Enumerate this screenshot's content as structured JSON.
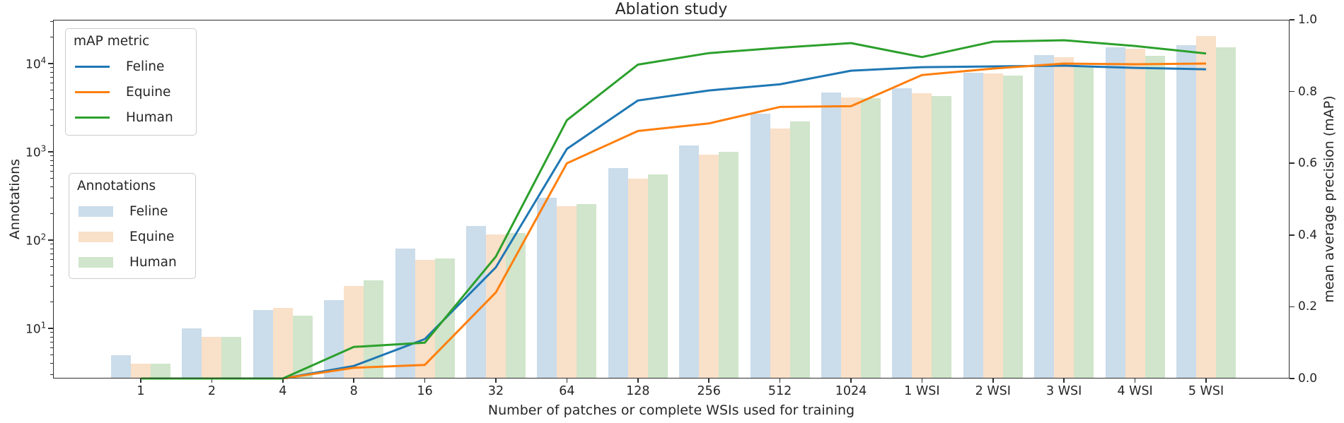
{
  "title": "Ablation study",
  "axes": {
    "x_label": "Number of patches or complete WSIs used for training",
    "y_left_label": "Annotations",
    "y_right_label": "mean average precision (mAP)"
  },
  "legends": {
    "lines": {
      "title": "mAP metric",
      "items": [
        {
          "label": "Feline",
          "color": "#1f77b4"
        },
        {
          "label": "Equine",
          "color": "#ff7f0e"
        },
        {
          "label": "Human",
          "color": "#2ca02c"
        }
      ]
    },
    "bars": {
      "title": "Annotations",
      "items": [
        {
          "label": "Feline",
          "color": "#cbdcea"
        },
        {
          "label": "Equine",
          "color": "#f9e0c8"
        },
        {
          "label": "Human",
          "color": "#d0e5cb"
        }
      ]
    }
  },
  "chart_data": {
    "type": "bar+line",
    "title": "Ablation study",
    "xlabel": "Number of patches or complete WSIs used for training",
    "categories": [
      "1",
      "2",
      "4",
      "8",
      "16",
      "32",
      "64",
      "128",
      "256",
      "512",
      "1024",
      "1 WSI",
      "2 WSI",
      "3 WSI",
      "4 WSI",
      "5 WSI"
    ],
    "left_axis": {
      "label": "Annotations",
      "scale": "log",
      "tick_exponents": [
        1,
        2,
        3,
        4
      ],
      "range_log10": [
        0.432,
        4.496
      ],
      "grid": false
    },
    "right_axis": {
      "label": "mean average precision (mAP)",
      "ticks": [
        0.0,
        0.2,
        0.4,
        0.6,
        0.8,
        1.0
      ],
      "range": [
        0.0,
        1.0
      ]
    },
    "bar_series": [
      {
        "name": "Feline",
        "color": "#cbdcea",
        "values": [
          5,
          10,
          16,
          21,
          80,
          145,
          300,
          650,
          1180,
          2700,
          4700,
          5200,
          7900,
          12500,
          15200,
          16000
        ]
      },
      {
        "name": "Equine",
        "color": "#f9e0c8",
        "values": [
          4,
          8,
          17,
          30,
          60,
          115,
          240,
          500,
          930,
          1850,
          4150,
          4600,
          7700,
          11800,
          14700,
          20500
        ]
      },
      {
        "name": "Human",
        "color": "#d0e5cb",
        "values": [
          4,
          8,
          14,
          35,
          62,
          120,
          255,
          550,
          1000,
          2200,
          4050,
          4300,
          7300,
          9100,
          12200,
          15400
        ]
      }
    ],
    "line_series": [
      {
        "name": "Feline",
        "color": "#1f77b4",
        "values": [
          0,
          0,
          0,
          0.035,
          0.11,
          0.31,
          0.64,
          0.775,
          0.803,
          0.82,
          0.858,
          0.868,
          0.87,
          0.872,
          0.866,
          0.862
        ]
      },
      {
        "name": "Equine",
        "color": "#ff7f0e",
        "values": [
          0,
          0,
          0,
          0.03,
          0.038,
          0.24,
          0.6,
          0.69,
          0.711,
          0.757,
          0.759,
          0.846,
          0.864,
          0.878,
          0.876,
          0.878
        ]
      },
      {
        "name": "Human",
        "color": "#2ca02c",
        "values": [
          0,
          0,
          0,
          0.088,
          0.1,
          0.34,
          0.72,
          0.875,
          0.907,
          0.922,
          0.935,
          0.896,
          0.939,
          0.943,
          0.927,
          0.906
        ]
      }
    ]
  }
}
